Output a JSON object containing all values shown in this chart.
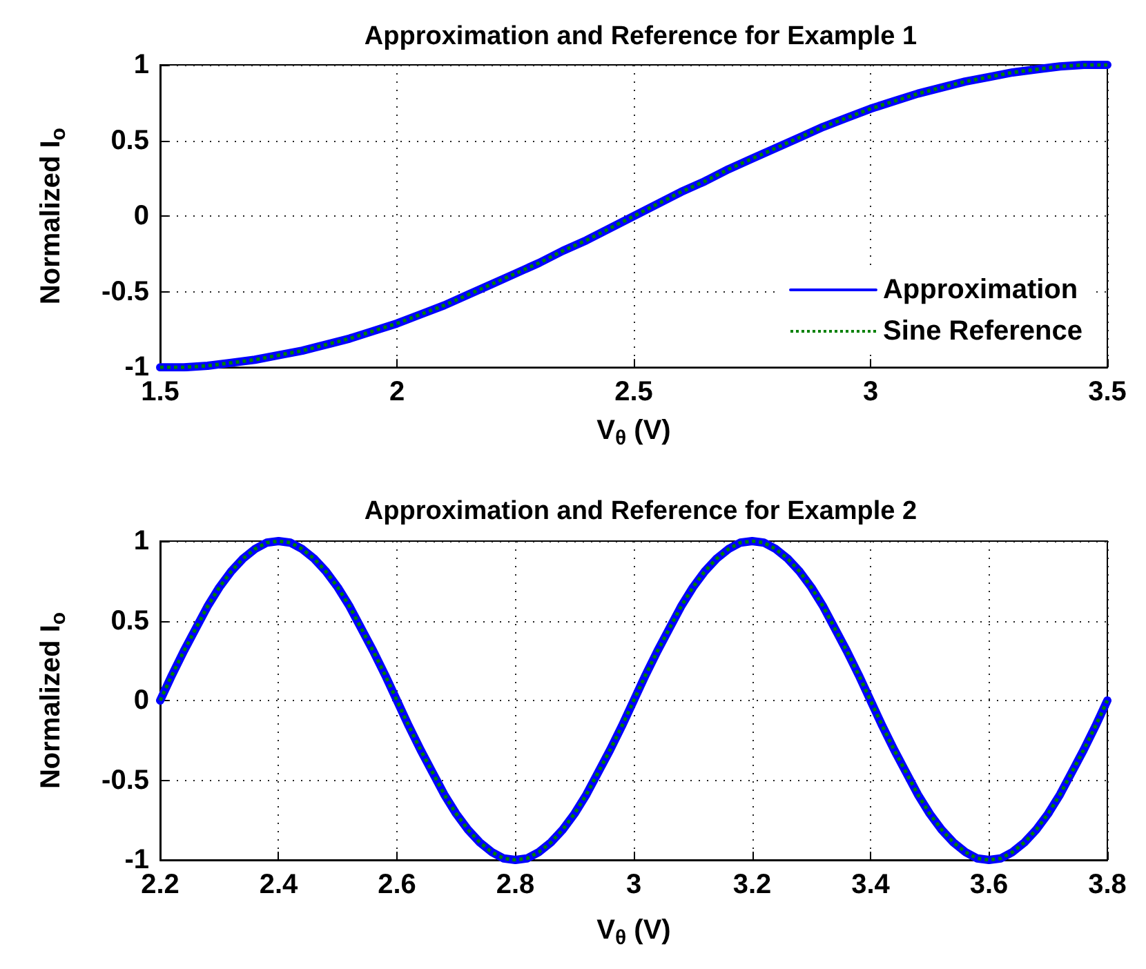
{
  "chart_data": [
    {
      "type": "line",
      "title": "Approximation and Reference for Example 1",
      "xlabel": "V$_{θ}$ (V)",
      "ylabel": "Normalized I$_{o}$",
      "x": [
        1.5,
        1.55,
        1.6,
        1.65,
        1.7,
        1.75,
        1.8,
        1.85,
        1.9,
        1.95,
        2,
        2.05,
        2.1,
        2.15,
        2.2,
        2.25,
        2.3,
        2.35,
        2.4,
        2.45,
        2.5,
        2.55,
        2.6,
        2.65,
        2.7,
        2.75,
        2.8,
        2.85,
        2.9,
        2.95,
        3,
        3.05,
        3.1,
        3.15,
        3.2,
        3.25,
        3.3,
        3.35,
        3.4,
        3.45,
        3.5
      ],
      "series": [
        {
          "name": "Approximation",
          "color": "#0000ff",
          "line_style": "solid",
          "values": [
            -1,
            -1,
            -0.99,
            -0.97,
            -0.95,
            -0.92,
            -0.89,
            -0.85,
            -0.81,
            -0.76,
            -0.71,
            -0.65,
            -0.59,
            -0.52,
            -0.45,
            -0.38,
            -0.31,
            -0.23,
            -0.16,
            -0.08,
            0,
            0.08,
            0.16,
            0.23,
            0.31,
            0.38,
            0.45,
            0.52,
            0.59,
            0.65,
            0.71,
            0.76,
            0.81,
            0.85,
            0.89,
            0.92,
            0.95,
            0.97,
            0.99,
            1,
            1
          ]
        },
        {
          "name": "Sine Reference",
          "color": "#008000",
          "line_style": "dotted",
          "values": [
            -1,
            -1,
            -0.99,
            -0.97,
            -0.95,
            -0.92,
            -0.89,
            -0.85,
            -0.81,
            -0.76,
            -0.71,
            -0.65,
            -0.59,
            -0.52,
            -0.45,
            -0.38,
            -0.31,
            -0.23,
            -0.16,
            -0.08,
            0,
            0.08,
            0.16,
            0.23,
            0.31,
            0.38,
            0.45,
            0.52,
            0.59,
            0.65,
            0.71,
            0.76,
            0.81,
            0.85,
            0.89,
            0.92,
            0.95,
            0.97,
            0.99,
            1,
            1
          ]
        }
      ],
      "xlim": [
        1.5,
        3.5
      ],
      "ylim": [
        -1,
        1
      ],
      "xticks": [
        1.5,
        2,
        2.5,
        3,
        3.5
      ],
      "yticks": [
        -1,
        -0.5,
        0,
        0.5,
        1
      ],
      "grid": true,
      "legend": "bottom right",
      "marker": "none"
    },
    {
      "type": "line",
      "title": "Approximation and Reference for Example 2",
      "xlabel": "V$_{θ}$ (V)",
      "ylabel": "Normalized I$_{o}$",
      "x": [
        2.2,
        2.22,
        2.24,
        2.26,
        2.28,
        2.3,
        2.32,
        2.34,
        2.36,
        2.38,
        2.4,
        2.42,
        2.44,
        2.46,
        2.48,
        2.5,
        2.52,
        2.54,
        2.56,
        2.58,
        2.6,
        2.62,
        2.64,
        2.66,
        2.68,
        2.7,
        2.72,
        2.74,
        2.76,
        2.78,
        2.8,
        2.82,
        2.84,
        2.86,
        2.88,
        2.9,
        2.92,
        2.94,
        2.96,
        2.98,
        3,
        3.02,
        3.04,
        3.06,
        3.08,
        3.1,
        3.12,
        3.14,
        3.16,
        3.18,
        3.2,
        3.22,
        3.24,
        3.26,
        3.28,
        3.3,
        3.32,
        3.34,
        3.36,
        3.38,
        3.4,
        3.42,
        3.44,
        3.46,
        3.48,
        3.5,
        3.52,
        3.54,
        3.56,
        3.58,
        3.6,
        3.62,
        3.64,
        3.66,
        3.68,
        3.7,
        3.72,
        3.74,
        3.76,
        3.78,
        3.8
      ],
      "series": [
        {
          "color": "#0000ff",
          "line_style": "solid",
          "values": [
            0,
            0.16,
            0.31,
            0.45,
            0.59,
            0.71,
            0.81,
            0.89,
            0.95,
            0.99,
            1,
            0.99,
            0.95,
            0.89,
            0.81,
            0.71,
            0.59,
            0.45,
            0.31,
            0.16,
            0,
            -0.16,
            -0.31,
            -0.45,
            -0.59,
            -0.71,
            -0.81,
            -0.89,
            -0.95,
            -0.99,
            -1,
            -0.99,
            -0.95,
            -0.89,
            -0.81,
            -0.71,
            -0.59,
            -0.45,
            -0.31,
            -0.16,
            0,
            0.16,
            0.31,
            0.45,
            0.59,
            0.71,
            0.81,
            0.89,
            0.95,
            0.99,
            1,
            0.99,
            0.95,
            0.89,
            0.81,
            0.71,
            0.59,
            0.45,
            0.31,
            0.16,
            0,
            -0.16,
            -0.31,
            -0.45,
            -0.59,
            -0.71,
            -0.81,
            -0.89,
            -0.95,
            -0.99,
            -1,
            -0.99,
            -0.95,
            -0.89,
            -0.81,
            -0.71,
            -0.59,
            -0.45,
            -0.31,
            -0.16,
            0
          ]
        },
        {
          "color": "#008000",
          "line_style": "dotted",
          "values": [
            0,
            0.16,
            0.31,
            0.45,
            0.59,
            0.71,
            0.81,
            0.89,
            0.95,
            0.99,
            1,
            0.99,
            0.95,
            0.89,
            0.81,
            0.71,
            0.59,
            0.45,
            0.31,
            0.16,
            0,
            -0.16,
            -0.31,
            -0.45,
            -0.59,
            -0.71,
            -0.81,
            -0.89,
            -0.95,
            -0.99,
            -1,
            -0.99,
            -0.95,
            -0.89,
            -0.81,
            -0.71,
            -0.59,
            -0.45,
            -0.31,
            -0.16,
            0,
            0.16,
            0.31,
            0.45,
            0.59,
            0.71,
            0.81,
            0.89,
            0.95,
            0.99,
            1,
            0.99,
            0.95,
            0.89,
            0.81,
            0.71,
            0.59,
            0.45,
            0.31,
            0.16,
            0,
            -0.16,
            -0.31,
            -0.45,
            -0.59,
            -0.71,
            -0.81,
            -0.89,
            -0.95,
            -0.99,
            -1,
            -0.99,
            -0.95,
            -0.89,
            -0.81,
            -0.71,
            -0.59,
            -0.45,
            -0.31,
            -0.16,
            0
          ]
        }
      ],
      "xlim": [
        2.2,
        3.8
      ],
      "ylim": [
        -1,
        1
      ],
      "xticks": [
        2.2,
        2.4,
        2.6,
        2.8,
        3,
        3.2,
        3.4,
        3.6,
        3.8
      ],
      "yticks": [
        -1,
        -0.5,
        0,
        0.5,
        1
      ],
      "grid": true,
      "marker": "none"
    }
  ]
}
